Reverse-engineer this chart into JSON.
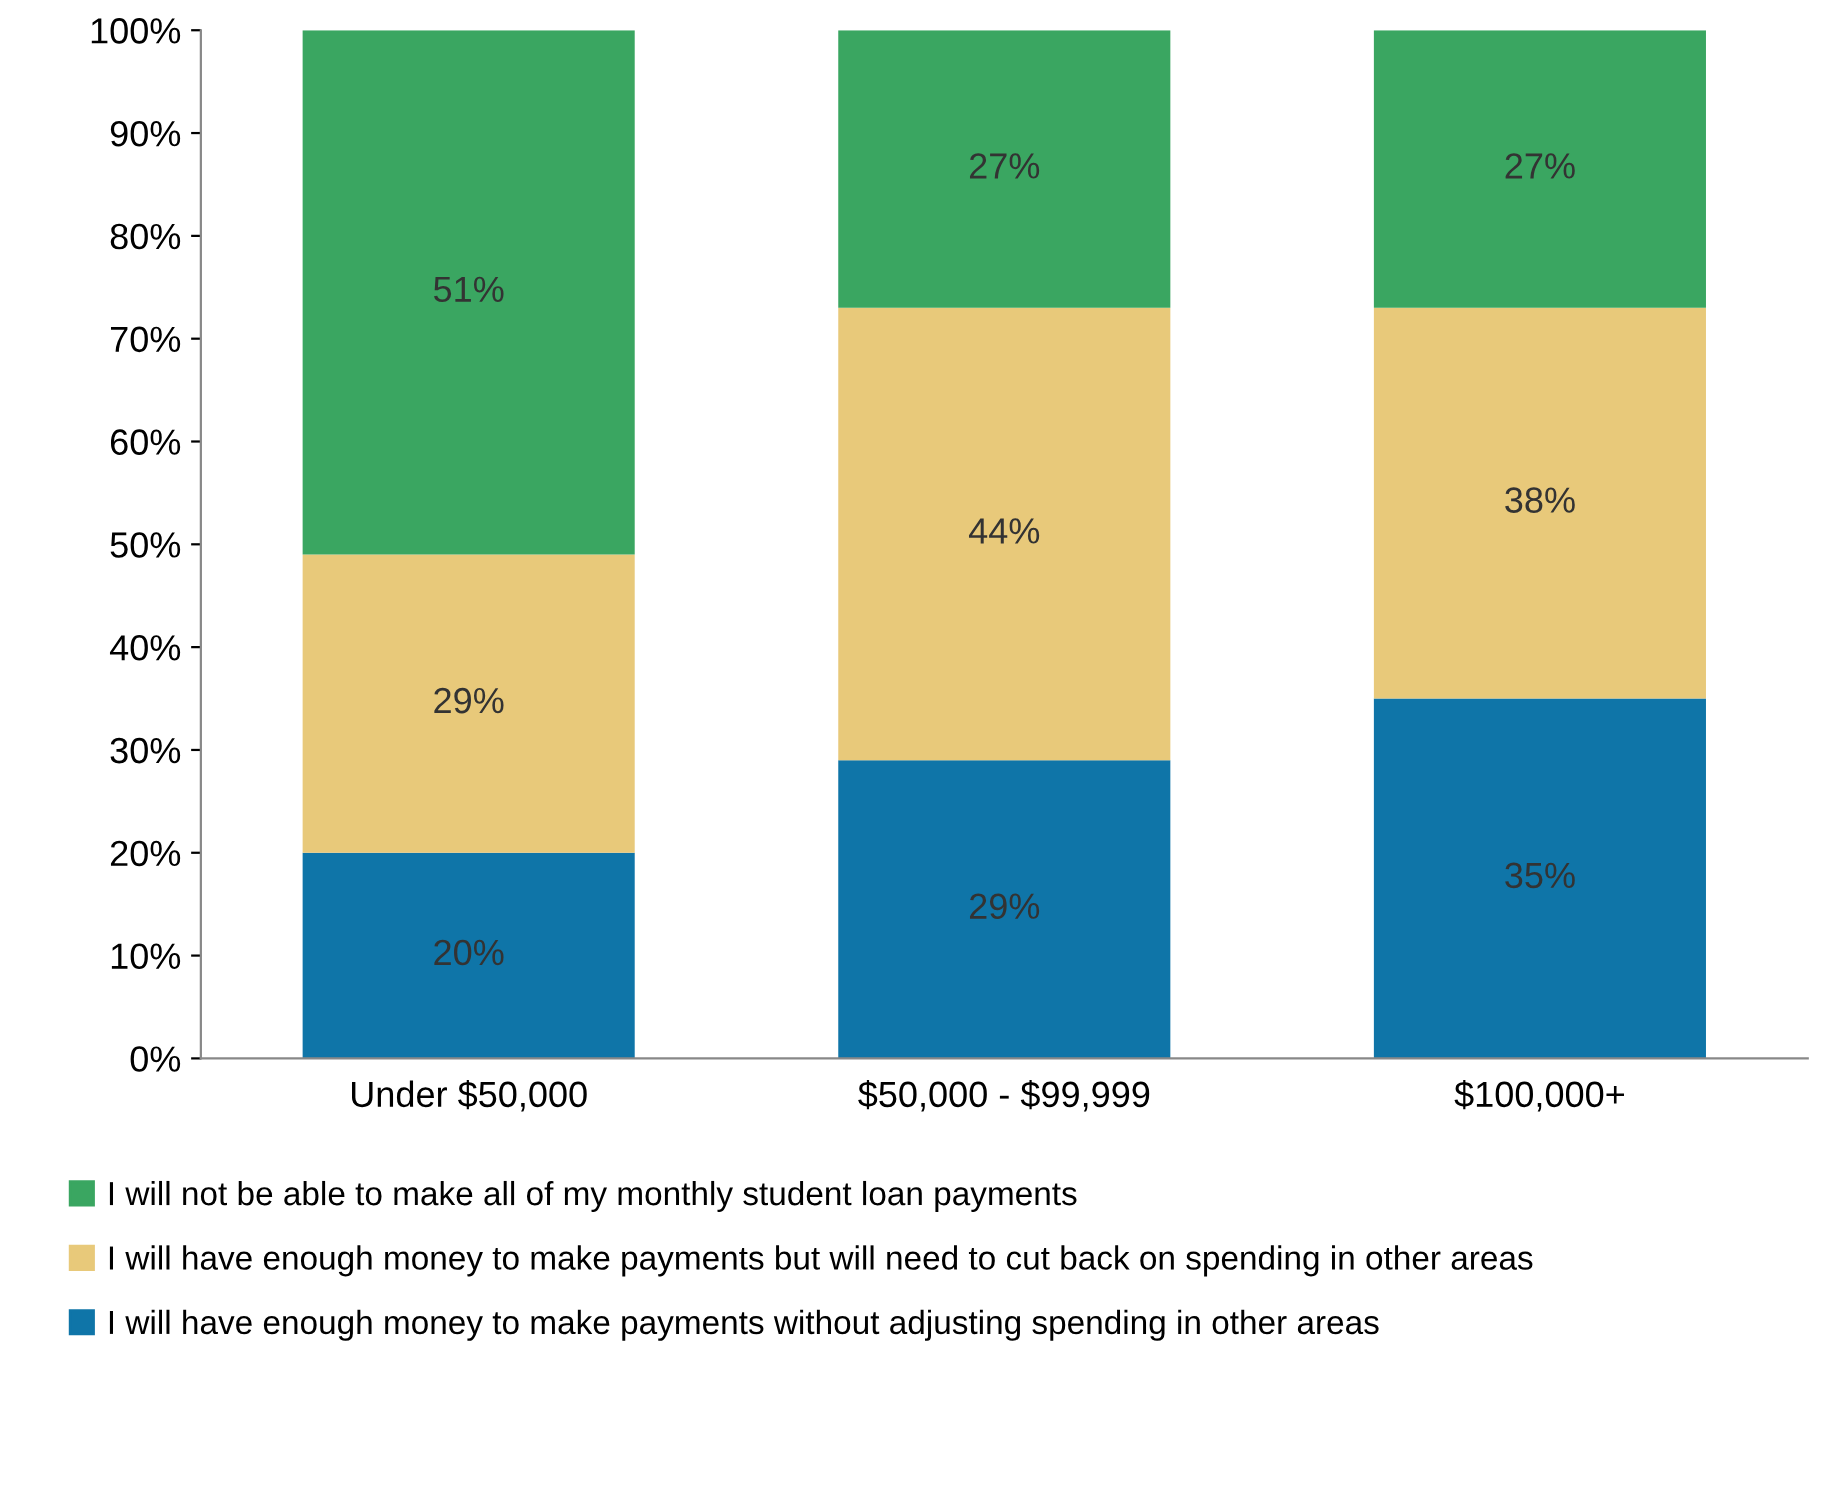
{
  "chart_data": {
    "type": "bar",
    "stacked": true,
    "categories": [
      "Under $50,000",
      "$50,000 - $99,999",
      "$100,000+"
    ],
    "series": [
      {
        "name": "I will have enough money to make payments without adjusting spending in other areas",
        "color": "#0f75a8",
        "values": [
          20,
          29,
          35
        ],
        "value_labels": [
          "20%",
          "29%",
          "35%"
        ]
      },
      {
        "name": "I will have enough money to make payments but will need to cut back on spending in other areas",
        "color": "#e8c97a",
        "values": [
          29,
          44,
          38
        ],
        "value_labels": [
          "29%",
          "44%",
          "38%"
        ]
      },
      {
        "name": "I will not be able to make all of my monthly student loan payments",
        "color": "#3aa661",
        "values": [
          51,
          27,
          27
        ],
        "value_labels": [
          "51%",
          "27%",
          "27%"
        ]
      }
    ],
    "ylim": [
      0,
      100
    ],
    "yticks": [
      {
        "value": 0,
        "label": "0%"
      },
      {
        "value": 10,
        "label": "10%"
      },
      {
        "value": 20,
        "label": "20%"
      },
      {
        "value": 30,
        "label": "30%"
      },
      {
        "value": 40,
        "label": "40%"
      },
      {
        "value": 50,
        "label": "50%"
      },
      {
        "value": 60,
        "label": "60%"
      },
      {
        "value": 70,
        "label": "70%"
      },
      {
        "value": 80,
        "label": "80%"
      },
      {
        "value": 90,
        "label": "90%"
      },
      {
        "value": 100,
        "label": "100%"
      }
    ],
    "grid": false,
    "legend": "bottom"
  }
}
